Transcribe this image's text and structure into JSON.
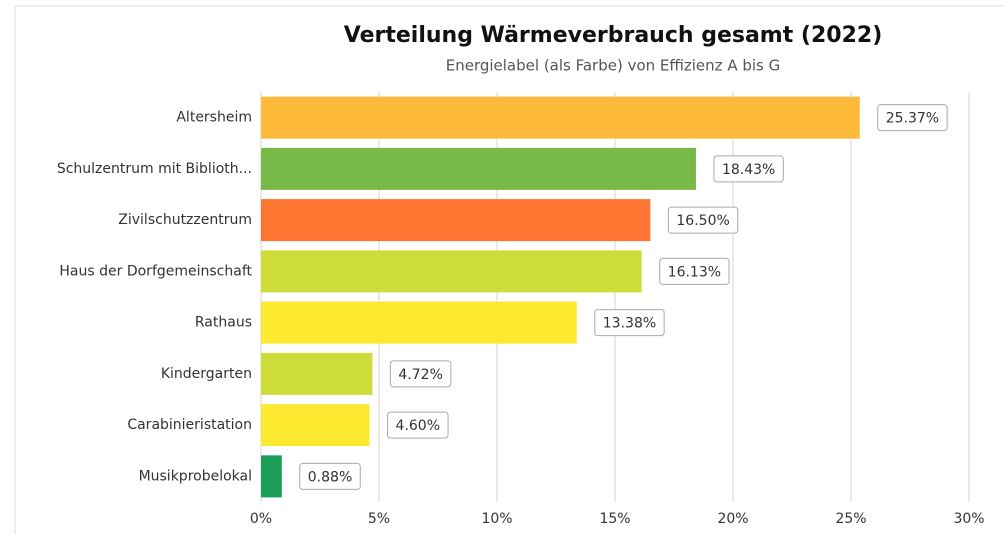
{
  "chart_data": {
    "type": "bar",
    "orientation": "horizontal",
    "title": "Verteilung Wärmeverbrauch gesamt (2022)",
    "subtitle": "Energielabel (als Farbe) von Effizienz A bis G",
    "categories": [
      "Altersheim",
      "Schulzentrum mit Biblioth...",
      "Zivilschutzzentrum",
      "Haus der Dorfgemeinschaft",
      "Rathaus",
      "Kindergarten",
      "Carabinieristation",
      "Musikprobelokal"
    ],
    "values": [
      25.37,
      18.43,
      16.5,
      16.13,
      13.38,
      4.72,
      4.6,
      0.88
    ],
    "value_labels": [
      "25.37%",
      "18.43%",
      "16.50%",
      "16.13%",
      "13.38%",
      "4.72%",
      "4.60%",
      "0.88%"
    ],
    "colors": [
      "#fdb93a",
      "#79b94a",
      "#fd7530",
      "#cfdd3a",
      "#fde930",
      "#cfdd3a",
      "#fde930",
      "#1a9e58"
    ],
    "xlim": [
      0,
      30
    ],
    "xticks": [
      {
        "value": 0,
        "label": "0%"
      },
      {
        "value": 5,
        "label": "5%"
      },
      {
        "value": 10,
        "label": "10%"
      },
      {
        "value": 15,
        "label": "15%"
      },
      {
        "value": 20,
        "label": "20%"
      },
      {
        "value": 25,
        "label": "25%"
      },
      {
        "value": 30,
        "label": "30%"
      }
    ],
    "grid": true
  }
}
